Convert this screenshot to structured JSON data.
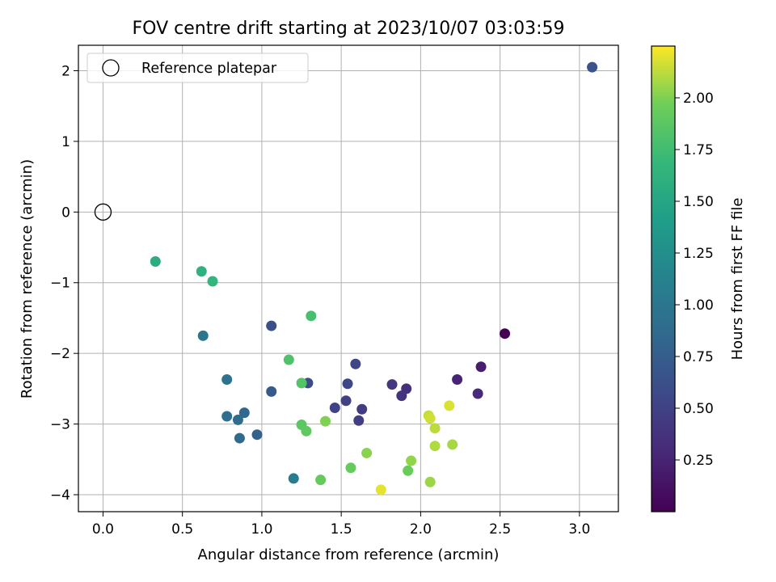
{
  "chart_data": {
    "type": "scatter",
    "title": "FOV centre drift starting at 2023/10/07 03:03:59",
    "xlabel": "Angular distance from reference (arcmin)",
    "ylabel": "Rotation from reference (arcmin)",
    "xlim": [
      -0.155,
      3.245
    ],
    "ylim": [
      -4.24,
      2.36
    ],
    "xticks": [
      0.0,
      0.5,
      1.0,
      1.5,
      2.0,
      2.5,
      3.0
    ],
    "xtick_labels": [
      "0.0",
      "0.5",
      "1.0",
      "1.5",
      "2.0",
      "2.5",
      "3.0"
    ],
    "yticks": [
      -4,
      -3,
      -2,
      -1,
      0,
      1,
      2
    ],
    "ytick_labels": [
      "−4",
      "−3",
      "−2",
      "−1",
      "0",
      "1",
      "2"
    ],
    "grid": true,
    "legend": {
      "placement": "top-left",
      "entries": [
        "Reference platepar"
      ]
    },
    "reference_point": {
      "x": 0.0,
      "y": 0.0
    },
    "colorbar": {
      "label": "Hours from first FF file",
      "colormap": "viridis",
      "min": 0.0,
      "max": 2.25,
      "ticks": [
        0.25,
        0.5,
        0.75,
        1.0,
        1.25,
        1.5,
        1.75,
        2.0
      ],
      "tick_labels": [
        "0.25",
        "0.50",
        "0.75",
        "1.00",
        "1.25",
        "1.50",
        "1.75",
        "2.00"
      ]
    },
    "points": [
      {
        "x": 2.53,
        "y": -1.72,
        "c": 0.0
      },
      {
        "x": 2.38,
        "y": -2.19,
        "c": 0.2
      },
      {
        "x": 2.23,
        "y": -2.37,
        "c": 0.25
      },
      {
        "x": 2.36,
        "y": -2.57,
        "c": 0.3
      },
      {
        "x": 1.91,
        "y": -2.5,
        "c": 0.35
      },
      {
        "x": 1.88,
        "y": -2.6,
        "c": 0.38
      },
      {
        "x": 1.82,
        "y": -2.44,
        "c": 0.4
      },
      {
        "x": 1.63,
        "y": -2.79,
        "c": 0.45
      },
      {
        "x": 1.61,
        "y": -2.95,
        "c": 0.47
      },
      {
        "x": 1.53,
        "y": -2.67,
        "c": 0.49
      },
      {
        "x": 1.46,
        "y": -2.77,
        "c": 0.51
      },
      {
        "x": 1.59,
        "y": -2.15,
        "c": 0.53
      },
      {
        "x": 1.54,
        "y": -2.43,
        "c": 0.55
      },
      {
        "x": 1.29,
        "y": -2.42,
        "c": 0.58
      },
      {
        "x": 1.06,
        "y": -1.61,
        "c": 0.62
      },
      {
        "x": 3.08,
        "y": 2.05,
        "c": 0.65
      },
      {
        "x": 1.06,
        "y": -2.54,
        "c": 0.72
      },
      {
        "x": 0.97,
        "y": -3.15,
        "c": 0.8
      },
      {
        "x": 0.89,
        "y": -2.84,
        "c": 0.85
      },
      {
        "x": 0.86,
        "y": -3.2,
        "c": 0.88
      },
      {
        "x": 0.85,
        "y": -2.94,
        "c": 0.9
      },
      {
        "x": 0.78,
        "y": -2.89,
        "c": 0.92
      },
      {
        "x": 0.78,
        "y": -2.37,
        "c": 0.95
      },
      {
        "x": 0.63,
        "y": -1.75,
        "c": 1.0
      },
      {
        "x": 1.2,
        "y": -3.77,
        "c": 1.05
      },
      {
        "x": 0.33,
        "y": -0.7,
        "c": 1.58
      },
      {
        "x": 0.62,
        "y": -0.84,
        "c": 1.62
      },
      {
        "x": 0.69,
        "y": -0.98,
        "c": 1.66
      },
      {
        "x": 1.31,
        "y": -1.47,
        "c": 1.78
      },
      {
        "x": 1.17,
        "y": -2.09,
        "c": 1.82
      },
      {
        "x": 1.25,
        "y": -2.42,
        "c": 1.84
      },
      {
        "x": 1.25,
        "y": -3.01,
        "c": 1.88
      },
      {
        "x": 1.28,
        "y": -3.1,
        "c": 1.9
      },
      {
        "x": 1.37,
        "y": -3.79,
        "c": 1.92
      },
      {
        "x": 1.56,
        "y": -3.62,
        "c": 1.93
      },
      {
        "x": 1.92,
        "y": -3.66,
        "c": 1.94
      },
      {
        "x": 1.4,
        "y": -2.96,
        "c": 2.0
      },
      {
        "x": 1.66,
        "y": -3.41,
        "c": 2.02
      },
      {
        "x": 1.94,
        "y": -3.52,
        "c": 2.04
      },
      {
        "x": 2.06,
        "y": -3.82,
        "c": 2.06
      },
      {
        "x": 2.2,
        "y": -3.29,
        "c": 2.08
      },
      {
        "x": 2.09,
        "y": -3.31,
        "c": 2.1
      },
      {
        "x": 2.09,
        "y": -3.06,
        "c": 2.12
      },
      {
        "x": 2.05,
        "y": -2.88,
        "c": 2.14
      },
      {
        "x": 2.06,
        "y": -2.92,
        "c": 2.16
      },
      {
        "x": 2.18,
        "y": -2.74,
        "c": 2.18
      },
      {
        "x": 1.75,
        "y": -3.93,
        "c": 2.2
      }
    ]
  }
}
